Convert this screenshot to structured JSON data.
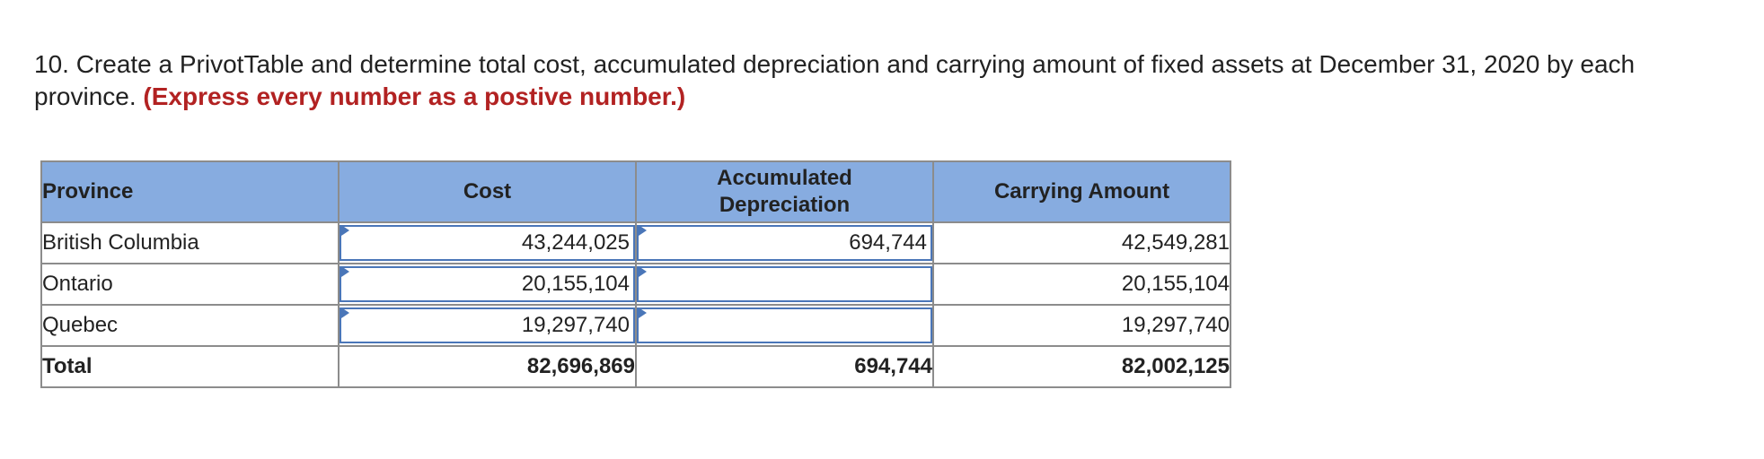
{
  "question": {
    "text": "10. Create a PrivotTable and determine total cost, accumulated depreciation and carrying amount of fixed assets at December 31, 2020 by each province.",
    "emphasis": "(Express every number as a postive number.)"
  },
  "table": {
    "headers": {
      "province": "Province",
      "cost": "Cost",
      "accumulated_line1": "Accumulated",
      "accumulated_line2": "Depreciation",
      "carrying": "Carrying Amount"
    },
    "rows": [
      {
        "province": "British Columbia",
        "cost": "43,244,025",
        "accumulated": "694,744",
        "carrying": "42,549,281"
      },
      {
        "province": "Ontario",
        "cost": "20,155,104",
        "accumulated": "",
        "carrying": "20,155,104"
      },
      {
        "province": "Quebec",
        "cost": "19,297,740",
        "accumulated": "",
        "carrying": "19,297,740"
      }
    ],
    "total": {
      "label": "Total",
      "cost": "82,696,869",
      "accumulated": "694,744",
      "carrying": "82,002,125"
    }
  }
}
